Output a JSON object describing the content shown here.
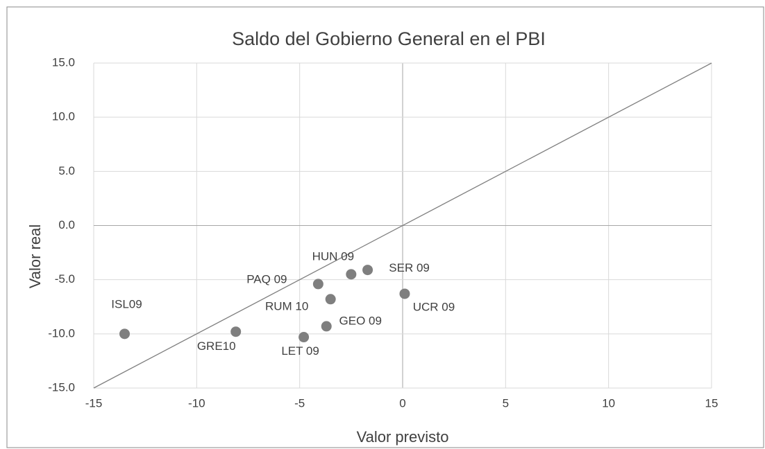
{
  "chart_data": {
    "type": "scatter",
    "title": "Saldo del Gobierno General en el PBI",
    "x_label": "Valor previsto",
    "y_label": "Valor real",
    "labels": [
      "ISL09",
      "GRE10",
      "LET 09",
      "GEO 09",
      "PAQ 09",
      "RUM 10",
      "HUN 09",
      "SER 09",
      "UCR 09"
    ],
    "x": [
      -13.5,
      -8.1,
      -4.8,
      -3.7,
      -4.1,
      -3.5,
      -2.5,
      -1.7,
      0.1
    ],
    "values": [
      -10.0,
      -9.8,
      -10.3,
      -9.3,
      -5.4,
      -6.8,
      -4.5,
      -4.1,
      -6.3
    ],
    "color": "#7f7f7f",
    "xlim": [
      -15,
      15
    ],
    "xticks": [
      -15,
      -10,
      -5,
      0,
      5,
      10,
      15
    ],
    "ylim": [
      -15,
      15
    ],
    "yticks": [
      {
        "value": -15,
        "label": "-15.0"
      },
      {
        "value": -10,
        "label": "-10.0"
      },
      {
        "value": -5,
        "label": "-5.0"
      },
      {
        "value": 0,
        "label": "0.0"
      },
      {
        "value": 5,
        "label": "5.0"
      },
      {
        "value": 10,
        "label": "10.0"
      },
      {
        "value": 15,
        "label": "15.0"
      }
    ],
    "grid": true
  }
}
